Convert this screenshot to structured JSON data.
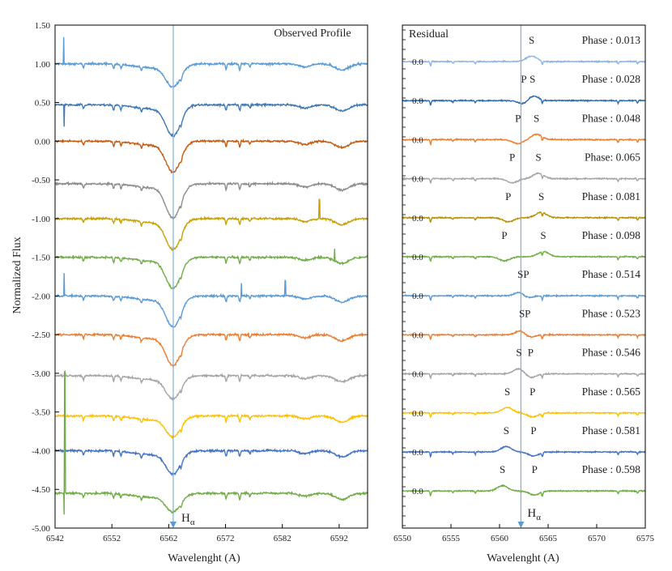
{
  "chart_data": [
    {
      "type": "line",
      "title": "Observed Profile",
      "xlabel": "Wavelenght (A)",
      "ylabel": "Normalized Flux",
      "xlim": [
        6542,
        6597
      ],
      "ylim": [
        -5.0,
        1.5
      ],
      "x_ticks": [
        6542,
        6552,
        6562,
        6572,
        6582,
        6592
      ],
      "x_tick_labels": [
        "6542",
        "6552",
        "6562",
        "6572",
        "6582",
        "6592"
      ],
      "y_ticks": [
        1.5,
        1.0,
        0.5,
        0.0,
        -0.5,
        -1.0,
        -1.5,
        -2.0,
        -2.5,
        -3.0,
        -3.5,
        -4.0,
        -4.5,
        -5.0
      ],
      "y_tick_labels": [
        "1.50",
        "1.00",
        "0.50",
        "0.00",
        "-0.50",
        "-1.00",
        "-1.50",
        "-2.00",
        "-2.50",
        "-3.00",
        "-3.50",
        "-4.00",
        "-4.50",
        "-5.00"
      ],
      "grid": false,
      "marker_line": {
        "x": 6562.8,
        "label_main": "H",
        "label_sub": "α",
        "color": "#7fb0e0"
      },
      "series": [
        {
          "baseline": 1.0,
          "color": "#5b9bd5",
          "depth": 0.28,
          "spikes": [
            [
              6543.5,
              0.35
            ]
          ]
        },
        {
          "baseline": 0.47,
          "color": "#3f79b5",
          "depth": 0.38,
          "spikes": [
            [
              6543.6,
              -0.28
            ]
          ]
        },
        {
          "baseline": 0.0,
          "color": "#c55a11",
          "depth": 0.38,
          "spikes": []
        },
        {
          "baseline": -0.55,
          "color": "#8c8c8c",
          "depth": 0.42,
          "spikes": []
        },
        {
          "baseline": -1.0,
          "color": "#c9a000",
          "depth": 0.38,
          "spikes": [
            [
              6588.5,
              0.25
            ]
          ]
        },
        {
          "baseline": -1.5,
          "color": "#70ad47",
          "depth": 0.38,
          "spikes": [
            [
              6591.2,
              0.15
            ]
          ]
        },
        {
          "baseline": -2.0,
          "color": "#5b9bd5",
          "depth": 0.38,
          "spikes": [
            [
              6543.6,
              0.3
            ],
            [
              6574.8,
              0.18
            ],
            [
              6582.5,
              0.2
            ]
          ]
        },
        {
          "baseline": -2.5,
          "color": "#ed7d31",
          "depth": 0.38,
          "spikes": []
        },
        {
          "baseline": -3.03,
          "color": "#a5a5a5",
          "depth": 0.28,
          "spikes": [
            [
              6543.7,
              0.05
            ]
          ]
        },
        {
          "baseline": -3.55,
          "color": "#ffc000",
          "depth": 0.25,
          "spikes": []
        },
        {
          "baseline": -4.0,
          "color": "#4472c4",
          "depth": 0.28,
          "spikes": []
        },
        {
          "baseline": -4.55,
          "color": "#70ad47",
          "depth": 0.22,
          "spikes": [
            [
              6543.6,
              -0.28
            ],
            [
              6543.7,
              1.55
            ]
          ]
        }
      ]
    },
    {
      "type": "line",
      "title": "Residual",
      "xlabel": "Wavelenght (A)",
      "xlim": [
        6550,
        6575
      ],
      "x_ticks": [
        6550,
        6555,
        6560,
        6565,
        6570,
        6575
      ],
      "x_tick_labels": [
        "6550",
        "6555",
        "6560",
        "6565",
        "6570",
        "6575"
      ],
      "grid": false,
      "marker_line": {
        "x": 6562.2,
        "label_main": "H",
        "label_sub": "α",
        "color": "#7fb0e0"
      },
      "series": [
        {
          "name": "Phase : 0.013",
          "ylabel": "0.0",
          "color": "#8fb4e3",
          "p": null,
          "s": 6563.3,
          "p_label": "",
          "s_label": "S"
        },
        {
          "name": "Phase : 0.028",
          "ylabel": "0.0",
          "color": "#2e6bb0",
          "p": 6562.5,
          "s": 6563.4,
          "p_label": "P",
          "s_label": "S"
        },
        {
          "name": "Phase : 0.048",
          "ylabel": "0.0",
          "color": "#ed7d31",
          "p": 6561.9,
          "s": 6563.8,
          "p_label": "P",
          "s_label": "S"
        },
        {
          "name": "Phase: 0.065",
          "ylabel": "0.0",
          "color": "#a5a5a5",
          "p": 6561.3,
          "s": 6564.0,
          "p_label": "P",
          "s_label": "S"
        },
        {
          "name": "Phase : 0.081",
          "ylabel": "0.0",
          "color": "#b8900a",
          "p": 6560.9,
          "s": 6564.3,
          "p_label": "P",
          "s_label": "S"
        },
        {
          "name": "Phase : 0.098",
          "ylabel": "0.0",
          "color": "#70ad47",
          "p": 6560.5,
          "s": 6564.5,
          "p_label": "P",
          "s_label": "S"
        },
        {
          "name": "Phase : 0.514",
          "ylabel": "0.0",
          "color": "#5b9bd5",
          "p": 6562.7,
          "s": 6562.2,
          "p_label": "P",
          "s_label": "S",
          "combined": "SP"
        },
        {
          "name": "Phase : 0.523",
          "ylabel": "0.0",
          "color": "#ed7d31",
          "p": 6562.9,
          "s": 6562.3,
          "p_label": "P",
          "s_label": "S"
        },
        {
          "name": "Phase : 0.546",
          "ylabel": "0.0",
          "color": "#a5a5a5",
          "p": 6563.2,
          "s": 6562.0,
          "p_label": "P",
          "s_label": "S"
        },
        {
          "name": "Phase : 0.565",
          "ylabel": "0.0",
          "color": "#ffc000",
          "p": 6563.4,
          "s": 6560.8,
          "p_label": "P",
          "s_label": "S"
        },
        {
          "name": "Phase : 0.581",
          "ylabel": "0.0",
          "color": "#4472c4",
          "p": 6563.5,
          "s": 6560.7,
          "p_label": "P",
          "s_label": "S"
        },
        {
          "name": "Phase : 0.598",
          "ylabel": "0.0",
          "color": "#70ad47",
          "p": 6563.6,
          "s": 6560.3,
          "p_label": "P",
          "s_label": "S"
        }
      ]
    }
  ]
}
